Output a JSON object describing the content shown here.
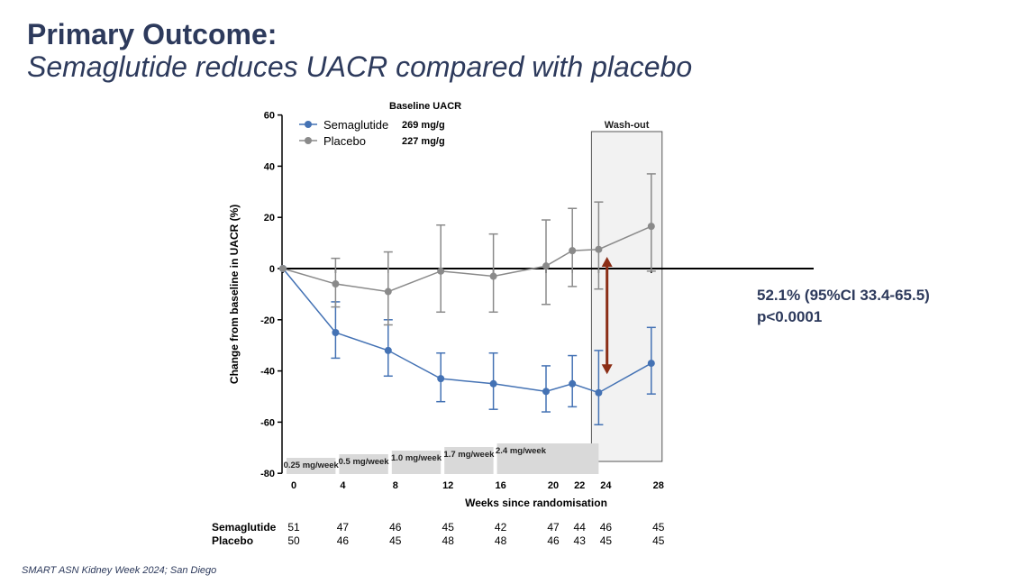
{
  "header": {
    "title": "Primary Outcome:",
    "subtitle": "Semaglutide reduces UACR compared with placebo"
  },
  "result_annotation": {
    "line1": "52.1% (95%CI 33.4-65.5)",
    "line2": "p<0.0001"
  },
  "footer": "SMART ASN Kidney Week 2024; San Diego",
  "colors": {
    "semaglutide": "#4472b4",
    "placebo": "#8a8a8a",
    "arrow": "#8b2e16",
    "text": "#2d3a5c",
    "dose_band": "#d9d9d9",
    "washout": "#f2f2f2"
  },
  "chart_data": {
    "type": "line",
    "xlabel": "Weeks since randomisation",
    "ylabel": "Change from baseline in UACR (%)",
    "ylim": [
      -80,
      60
    ],
    "yticks": [
      60,
      40,
      20,
      0,
      -20,
      -40,
      -60,
      -80
    ],
    "xticks": [
      0,
      4,
      8,
      12,
      16,
      20,
      22,
      24,
      28
    ],
    "legend_title": "Baseline UACR",
    "legend_position": "top-left",
    "washout_label": "Wash-out",
    "washout_range": [
      24,
      28
    ],
    "series": [
      {
        "name": "Semaglutide",
        "baseline": "269 mg/g",
        "x": [
          0,
          4,
          8,
          12,
          16,
          20,
          22,
          24,
          28
        ],
        "y": [
          0,
          -25,
          -32,
          -43,
          -45,
          -48,
          -45,
          -48.5,
          -37
        ],
        "ci_low": [
          0,
          -35,
          -42,
          -52,
          -55,
          -56,
          -54,
          -61,
          -49
        ],
        "ci_high": [
          0,
          -13,
          -20,
          -33,
          -33,
          -38,
          -34,
          -32,
          -23
        ]
      },
      {
        "name": "Placebo",
        "baseline": "227 mg/g",
        "x": [
          0,
          4,
          8,
          12,
          16,
          20,
          22,
          24,
          28
        ],
        "y": [
          0,
          -6,
          -9,
          -1,
          -3,
          1,
          7,
          7.5,
          16.5
        ],
        "ci_low": [
          0,
          -15,
          -22,
          -17,
          -17,
          -14,
          -7,
          -8,
          -1
        ],
        "ci_high": [
          0,
          4,
          6.5,
          17,
          13.5,
          19,
          23.5,
          26,
          37
        ]
      }
    ],
    "dose_steps": [
      {
        "label": "0.25 mg/week",
        "x_start": 0,
        "x_end": 4,
        "level": 0
      },
      {
        "label": "0.5 mg/week",
        "x_start": 4,
        "x_end": 8,
        "level": 1
      },
      {
        "label": "1.0 mg/week",
        "x_start": 8,
        "x_end": 12,
        "level": 2
      },
      {
        "label": "1.7 mg/week",
        "x_start": 12,
        "x_end": 16,
        "level": 3
      },
      {
        "label": "2.4 mg/week",
        "x_start": 16,
        "x_end": 24,
        "level": 4
      }
    ],
    "difference_arrow": {
      "x": 24.5,
      "y_top": 6,
      "y_bottom": -42
    },
    "n_at_risk": {
      "rows": [
        {
          "label": "Semaglutide",
          "values": [
            51,
            47,
            46,
            45,
            42,
            47,
            44,
            46,
            45
          ]
        },
        {
          "label": "Placebo",
          "values": [
            50,
            46,
            45,
            48,
            48,
            46,
            43,
            45,
            45
          ]
        }
      ]
    }
  }
}
